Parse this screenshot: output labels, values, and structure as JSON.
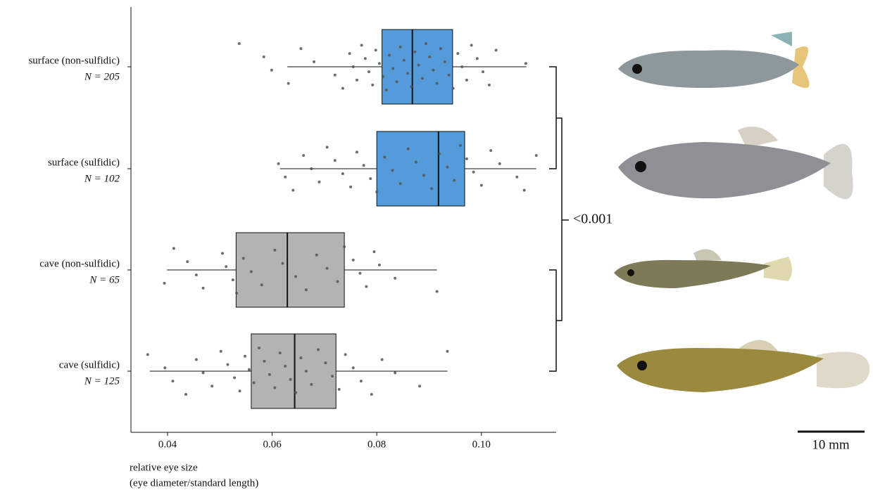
{
  "chart_data": {
    "type": "box",
    "xlabel": [
      "relative eye size",
      "(eye diameter/standard length)"
    ],
    "xlim": [
      0.033,
      0.1143
    ],
    "xticks": [
      0.04,
      0.06,
      0.08,
      {
        "value": 0.1,
        "label": "0.10"
      }
    ],
    "annotation": "<0.001",
    "scale_bar": "10 mm",
    "series": [
      {
        "name": "surface (non-sulfidic)",
        "n_label": "N = 205",
        "color": "#559bd9",
        "min": 0.0629,
        "q1": 0.081,
        "median": 0.0868,
        "q3": 0.0945,
        "max": 0.1086,
        "points": [
          0.0537,
          0.0584,
          0.0599,
          0.0631,
          0.0655,
          0.068,
          0.072,
          0.0735,
          0.0748,
          0.0755,
          0.0762,
          0.0771,
          0.0778,
          0.0785,
          0.0792,
          0.0798,
          0.0805,
          0.0812,
          0.0818,
          0.0824,
          0.0831,
          0.0838,
          0.0845,
          0.0852,
          0.0859,
          0.0866,
          0.0873,
          0.088,
          0.0887,
          0.0894,
          0.0901,
          0.0908,
          0.0915,
          0.0922,
          0.093,
          0.0938,
          0.0946,
          0.0955,
          0.0963,
          0.0972,
          0.0981,
          0.0992,
          0.1003,
          0.1015,
          0.1028,
          0.1085
        ]
      },
      {
        "name": "surface (sulfidic)",
        "n_label": "N = 102",
        "color": "#559bd9",
        "min": 0.0615,
        "q1": 0.08,
        "median": 0.0918,
        "q3": 0.0968,
        "max": 0.1105,
        "points": [
          0.0612,
          0.0625,
          0.064,
          0.066,
          0.0675,
          0.069,
          0.0705,
          0.072,
          0.0735,
          0.075,
          0.0762,
          0.0775,
          0.0788,
          0.08,
          0.0815,
          0.083,
          0.0845,
          0.086,
          0.0875,
          0.089,
          0.0905,
          0.092,
          0.0935,
          0.0948,
          0.096,
          0.0972,
          0.0985,
          0.1,
          0.1018,
          0.1035,
          0.1068,
          0.1082,
          0.1105
        ]
      },
      {
        "name": "cave (non-sulfidic)",
        "n_label": "N = 65",
        "color": "#b3b3b3",
        "min": 0.0399,
        "q1": 0.0531,
        "median": 0.0629,
        "q3": 0.0738,
        "max": 0.0915,
        "points": [
          0.0394,
          0.0412,
          0.0438,
          0.0455,
          0.0468,
          0.0505,
          0.0512,
          0.0525,
          0.0532,
          0.0545,
          0.056,
          0.058,
          0.0605,
          0.062,
          0.0645,
          0.0665,
          0.0685,
          0.0705,
          0.0725,
          0.0738,
          0.0755,
          0.0768,
          0.078,
          0.0795,
          0.0805,
          0.0835,
          0.0915
        ]
      },
      {
        "name": "cave (sulfidic)",
        "n_label": "N = 125",
        "color": "#b3b3b3",
        "min": 0.0366,
        "q1": 0.056,
        "median": 0.0643,
        "q3": 0.0722,
        "max": 0.0935,
        "points": [
          0.0362,
          0.0395,
          0.041,
          0.0435,
          0.0455,
          0.0468,
          0.0485,
          0.0502,
          0.0515,
          0.0528,
          0.0538,
          0.0548,
          0.0556,
          0.0565,
          0.0575,
          0.0585,
          0.0595,
          0.0605,
          0.0615,
          0.0625,
          0.0635,
          0.0645,
          0.0655,
          0.0665,
          0.0675,
          0.0688,
          0.0702,
          0.0715,
          0.0728,
          0.074,
          0.0755,
          0.077,
          0.079,
          0.081,
          0.0835,
          0.0882,
          0.0935
        ]
      }
    ]
  }
}
